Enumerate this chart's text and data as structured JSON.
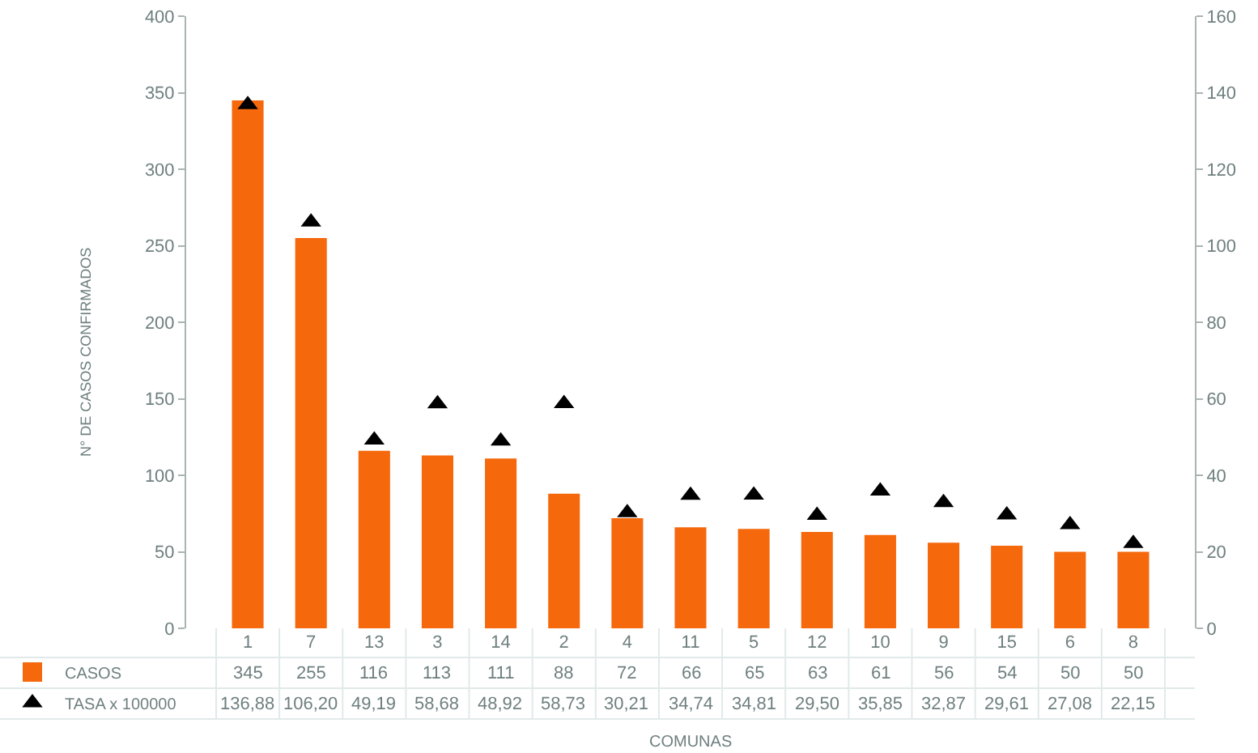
{
  "chart_data": {
    "type": "bar",
    "xlabel": "COMUNAS",
    "ylabel": "N° DE CASOS CONFIRMADOS",
    "categories": [
      "1",
      "7",
      "13",
      "3",
      "14",
      "2",
      "4",
      "11",
      "5",
      "12",
      "10",
      "9",
      "15",
      "6",
      "8"
    ],
    "series": [
      {
        "name": "CASOS",
        "color": "#f5680c",
        "values": [
          345,
          255,
          116,
          113,
          111,
          88,
          72,
          66,
          65,
          63,
          61,
          56,
          54,
          50,
          50
        ],
        "value_labels": [
          "345",
          "255",
          "116",
          "113",
          "111",
          "88",
          "72",
          "66",
          "65",
          "63",
          "61",
          "56",
          "54",
          "50",
          "50"
        ]
      },
      {
        "name": "TASA x 100000",
        "type": "scatter",
        "axis": "y2",
        "color": "#000000",
        "marker": "triangle",
        "values": [
          136.88,
          106.2,
          49.19,
          58.68,
          48.92,
          58.73,
          30.21,
          34.74,
          34.81,
          29.5,
          35.85,
          32.87,
          29.61,
          27.08,
          22.15
        ],
        "value_labels": [
          "136,88",
          "106,20",
          "49,19",
          "58,68",
          "48,92",
          "58,73",
          "30,21",
          "34,74",
          "34,81",
          "29,50",
          "35,85",
          "32,87",
          "29,61",
          "27,08",
          "22,15"
        ]
      }
    ],
    "ylim": [
      0,
      400
    ],
    "yticks": [
      0,
      50,
      100,
      150,
      200,
      250,
      300,
      350,
      400
    ],
    "y2lim": [
      0,
      160
    ],
    "y2ticks": [
      0,
      20,
      40,
      60,
      80,
      100,
      120,
      140,
      160
    ],
    "grid": false,
    "legend": "bottom left"
  }
}
